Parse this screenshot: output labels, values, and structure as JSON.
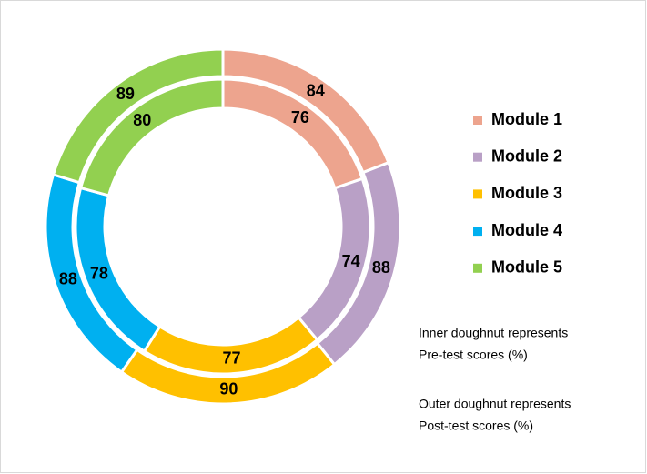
{
  "chart_data": {
    "type": "doughnut",
    "categories": [
      "Module 1",
      "Module 2",
      "Module 3",
      "Module 4",
      "Module 5"
    ],
    "colors": [
      "#eda48e",
      "#b9a0c6",
      "#ffc000",
      "#00b0f0",
      "#92d050"
    ],
    "series": [
      {
        "ring": "inner",
        "values": [
          76,
          74,
          77,
          78,
          80
        ]
      },
      {
        "ring": "outer",
        "values": [
          84,
          88,
          90,
          88,
          89
        ]
      }
    ],
    "annotations": [
      [
        "Inner doughnut represents",
        "Pre-test scores (%)"
      ],
      [
        "Outer doughnut represents",
        "Post-test scores (%)"
      ]
    ]
  }
}
